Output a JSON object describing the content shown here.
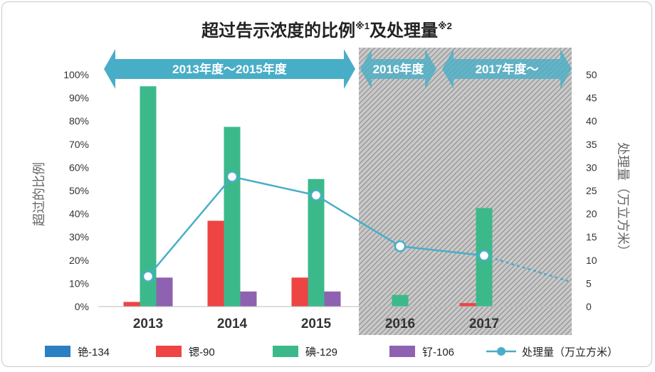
{
  "colors": {
    "cesium134": "#2b7fc2",
    "strontium90": "#ee4444",
    "iodine129": "#3cb98a",
    "ruthenium106": "#8e62b0",
    "volume": "#48aec8",
    "band": "#48aec8"
  },
  "periods": [
    {
      "label": "2013年度〜2015年度",
      "from": 2013,
      "to": 2015
    },
    {
      "label": "2016年度",
      "from": 2016,
      "to": 2016
    },
    {
      "label": "2017年度〜",
      "from": 2017,
      "to": 2018
    }
  ],
  "chart_data": {
    "type": "bar",
    "title": "超过告示浓度的比例",
    "title_sup1": "※1",
    "title_mid": "及处理量",
    "title_sup2": "※2",
    "categories": [
      "2013",
      "2014",
      "2015",
      "2016",
      "2017"
    ],
    "series": [
      {
        "name": "铯-134",
        "values": [
          0,
          0,
          0,
          0,
          0
        ],
        "color_key": "cesium134"
      },
      {
        "name": "锶-90",
        "values": [
          2,
          37,
          12.5,
          0,
          1.5
        ],
        "color_key": "strontium90"
      },
      {
        "name": "碘-129",
        "values": [
          95,
          77.5,
          55,
          5,
          42.5
        ],
        "color_key": "iodine129"
      },
      {
        "name": "钌-106",
        "values": [
          12.5,
          6.5,
          6.5,
          0,
          0
        ],
        "color_key": "ruthenium106"
      }
    ],
    "line_series": {
      "name": "处理量（万立方米）",
      "points": [
        {
          "year": 2013,
          "value": 6.5
        },
        {
          "year": 2014,
          "value": 28
        },
        {
          "year": 2015,
          "value": 24
        },
        {
          "year": 2016,
          "value": 13
        },
        {
          "year": 2017,
          "value": 11
        },
        {
          "year": 2018,
          "value": 5.5
        }
      ],
      "dashed_from_year": 2015
    },
    "ylabel": "超过的比例",
    "ylabel_right": "处理量（万立方米）",
    "ylim": [
      0,
      100
    ],
    "ylim_right": [
      0,
      50
    ],
    "yticks": [
      "0%",
      "10%",
      "20%",
      "30%",
      "40%",
      "50%",
      "60%",
      "70%",
      "80%",
      "90%",
      "100%"
    ],
    "yticks_right": [
      "0",
      "5",
      "10",
      "15",
      "20",
      "25",
      "30",
      "35",
      "40",
      "45",
      "50"
    ],
    "hatched_from_year": 2016,
    "legend_position": "bottom"
  }
}
